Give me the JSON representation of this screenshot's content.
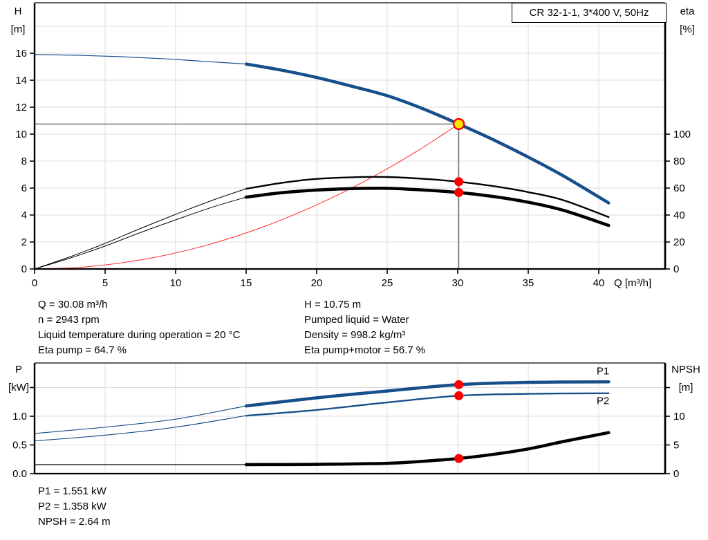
{
  "colors": {
    "curve_blue": "#174f8a",
    "system_red": "#ff2a2a",
    "marker_red": "#ff0000",
    "duty_yellow": "#ffe600",
    "grid_gray": "#dcdcdc",
    "reference_gray": "#595959",
    "axis_black": "#000000"
  },
  "top_chart": {
    "y_left_title": [
      "H",
      "[m]"
    ],
    "y_right_title": [
      "eta",
      "[%]"
    ]
  },
  "bottom_chart": {
    "y_left_title": [
      "P",
      "[kW]"
    ],
    "y_right_title": [
      "NPSH",
      "[m]"
    ]
  },
  "info_panel": {
    "left_lines": [
      "Q = 30.08 m³/h",
      "n = 2943 rpm",
      "Liquid temperature during operation = 20 °C",
      "Eta pump = 64.7 %"
    ],
    "right_lines": [
      "H = 10.75 m",
      "Pumped liquid = Water",
      "Density = 998.2 kg/m³",
      "Eta pump+motor = 56.7 %"
    ]
  },
  "result_panel": {
    "lines": [
      "P1 = 1.551 kW",
      "P2 = 1.358 kW",
      "NPSH = 2.64 m"
    ]
  },
  "chart_data": [
    {
      "type": "line",
      "title": "CR 32-1-1, 3*400 V, 50Hz",
      "xlabel": "Q [m³/h]",
      "ylabel_left": "H [m]",
      "ylabel_right": "eta [%]",
      "xlim": [
        0,
        44.7
      ],
      "ylim_left": [
        0,
        19.5
      ],
      "ylim_right": [
        0,
        195
      ],
      "grid": true,
      "legend_position": "none",
      "grid_x": [
        5,
        10,
        15,
        20,
        25,
        30,
        35,
        40
      ],
      "grid_y": {
        "axis": "H",
        "values": [
          2,
          4,
          6,
          8,
          10,
          12,
          14,
          16,
          18
        ]
      },
      "ticks_x": [
        {
          "v": 0,
          "label": "0"
        },
        {
          "v": 5,
          "label": "5"
        },
        {
          "v": 10,
          "label": "10"
        },
        {
          "v": 15,
          "label": "15"
        },
        {
          "v": 20,
          "label": "20"
        },
        {
          "v": 25,
          "label": "25"
        },
        {
          "v": 30,
          "label": "30"
        },
        {
          "v": 35,
          "label": "35"
        },
        {
          "v": 40,
          "label": "40"
        }
      ],
      "ticks_left": [
        {
          "v": 0,
          "label": "0"
        },
        {
          "v": 2,
          "label": "2"
        },
        {
          "v": 4,
          "label": "4"
        },
        {
          "v": 6,
          "label": "6"
        },
        {
          "v": 8,
          "label": "8"
        },
        {
          "v": 10,
          "label": "10"
        },
        {
          "v": 12,
          "label": "12"
        },
        {
          "v": 14,
          "label": "14"
        },
        {
          "v": 16,
          "label": "16"
        }
      ],
      "ticks_right": [
        {
          "v": 0,
          "label": "0"
        },
        {
          "v": 20,
          "label": "20"
        },
        {
          "v": 40,
          "label": "40"
        },
        {
          "v": 60,
          "label": "60"
        },
        {
          "v": 80,
          "label": "80"
        },
        {
          "v": 100,
          "label": "100"
        }
      ],
      "series": [
        {
          "name": "system-curve",
          "axis": "H",
          "color": "#ff2a2a",
          "width": 1,
          "x": [
            0,
            3,
            6,
            9,
            12,
            15,
            18,
            21,
            24,
            27,
            30.08
          ],
          "y": [
            0,
            0.11,
            0.43,
            0.96,
            1.71,
            2.67,
            3.85,
            5.24,
            6.84,
            8.66,
            10.75
          ]
        },
        {
          "name": "eta-pump-low-flow",
          "axis": "eta",
          "color": "#000000",
          "width": 1,
          "x": [
            0,
            2.5,
            5,
            7.5,
            10,
            12.5,
            15
          ],
          "y": [
            0,
            9,
            19,
            30,
            40.5,
            50.5,
            59.5
          ]
        },
        {
          "name": "eta-pump-curve",
          "axis": "eta",
          "color": "#000000",
          "width": 2.4,
          "x": [
            15,
            17.5,
            20,
            22.5,
            25,
            27.5,
            30.08,
            32.5,
            35,
            37.5,
            40.7
          ],
          "y": [
            59.5,
            63.8,
            66.8,
            68,
            68.2,
            66.9,
            64.7,
            61.5,
            57,
            51,
            38.5
          ]
        },
        {
          "name": "eta-pump-motor-low-flow",
          "axis": "eta",
          "color": "#000000",
          "width": 1,
          "x": [
            0,
            2.5,
            5,
            7.5,
            10,
            12.5,
            15
          ],
          "y": [
            0,
            8,
            17,
            27,
            36.4,
            45.5,
            53.3
          ]
        },
        {
          "name": "eta-pump-motor-curve",
          "axis": "eta",
          "color": "#000000",
          "width": 4.5,
          "x": [
            15,
            17.5,
            20,
            22.5,
            25,
            27.5,
            30.08,
            32.5,
            35,
            37.5,
            40.7
          ],
          "y": [
            53.3,
            56.5,
            58.5,
            59.6,
            59.8,
            58.6,
            56.7,
            53.8,
            49.5,
            43.5,
            32.3
          ]
        },
        {
          "name": "head-curve-low-flow",
          "axis": "H",
          "color": "#174f8a",
          "width": 1.2,
          "x": [
            0,
            3,
            6,
            9,
            12,
            15
          ],
          "y": [
            15.9,
            15.85,
            15.75,
            15.6,
            15.4,
            15.2
          ]
        },
        {
          "name": "head-curve",
          "axis": "H",
          "color": "#174f8a",
          "width": 4.5,
          "x": [
            15,
            17.5,
            20,
            22.5,
            25,
            27.5,
            30.08,
            32.5,
            35,
            37.5,
            40.7
          ],
          "y": [
            15.2,
            14.75,
            14.2,
            13.55,
            12.85,
            11.9,
            10.75,
            9.6,
            8.3,
            6.9,
            4.9
          ]
        }
      ],
      "reference_lines": [
        {
          "name": "duty-flow-line",
          "type": "v",
          "x": 30.08,
          "axis": "H",
          "from": 0,
          "to": 10.75,
          "color": "#595959",
          "width": 1.2
        },
        {
          "name": "duty-head-line",
          "type": "h",
          "axis": "H",
          "y": 10.75,
          "from": 0,
          "to": 30.08,
          "color": "#595959",
          "width": 1.2
        }
      ],
      "markers": [
        {
          "name": "eta-pump-marker",
          "x": 30.08,
          "axis": "eta",
          "y": 64.7,
          "r": 6.5,
          "fill": "#ff0000",
          "stroke": "none",
          "sw": 0
        },
        {
          "name": "eta-pump-motor-marker",
          "x": 30.08,
          "axis": "eta",
          "y": 56.7,
          "r": 6.5,
          "fill": "#ff0000",
          "stroke": "none",
          "sw": 0
        },
        {
          "name": "duty-point-marker",
          "x": 30.08,
          "axis": "H",
          "y": 10.75,
          "r": 7.5,
          "fill": "#ffe600",
          "stroke": "#ff0000",
          "sw": 2.4
        }
      ],
      "annotations": []
    },
    {
      "type": "line",
      "title": "",
      "xlabel": "",
      "ylabel_left": "P [kW]",
      "ylabel_right": "NPSH [m]",
      "xlim": [
        0,
        44.7
      ],
      "ylim_left": [
        0,
        1.93
      ],
      "ylim_right": [
        0,
        19.3
      ],
      "grid": true,
      "legend_position": "inline-right",
      "grid_x": [
        5,
        10,
        15,
        20,
        25,
        30,
        35,
        40
      ],
      "grid_y": {
        "axis": "P",
        "values": [
          0.5,
          1.0,
          1.5
        ]
      },
      "ticks_x": [],
      "ticks_left": [
        {
          "v": 0,
          "label": "0.0"
        },
        {
          "v": 0.5,
          "label": "0.5"
        },
        {
          "v": 1.0,
          "label": "1.0"
        },
        {
          "v": 1.5,
          "label": ""
        }
      ],
      "ticks_right": [
        {
          "v": 0,
          "label": "0"
        },
        {
          "v": 5,
          "label": "5"
        },
        {
          "v": 10,
          "label": "10"
        },
        {
          "v": 15,
          "label": ""
        }
      ],
      "series": [
        {
          "name": "npsh-low-flow",
          "axis": "NPSH",
          "color": "#000000",
          "width": 1.2,
          "x": [
            0,
            15
          ],
          "y": [
            1.57,
            1.57
          ]
        },
        {
          "name": "npsh-curve",
          "axis": "NPSH",
          "color": "#000000",
          "width": 4.5,
          "x": [
            15,
            20,
            25,
            27.5,
            30.08,
            32.5,
            35,
            37.5,
            40.7
          ],
          "y": [
            1.57,
            1.62,
            1.8,
            2.15,
            2.64,
            3.35,
            4.3,
            5.6,
            7.15
          ]
        },
        {
          "name": "p1-low-flow",
          "axis": "P",
          "color": "#174f8a",
          "width": 1.2,
          "x": [
            0,
            5,
            10,
            15
          ],
          "y": [
            0.7,
            0.81,
            0.95,
            1.18
          ]
        },
        {
          "name": "p1-curve",
          "axis": "P",
          "color": "#174f8a",
          "width": 4.5,
          "x": [
            15,
            20,
            25,
            30.08,
            35,
            40.7
          ],
          "y": [
            1.18,
            1.32,
            1.44,
            1.551,
            1.59,
            1.6
          ]
        },
        {
          "name": "p2-low-flow",
          "axis": "P",
          "color": "#174f8a",
          "width": 1.2,
          "x": [
            0,
            5,
            10,
            15
          ],
          "y": [
            0.57,
            0.67,
            0.81,
            1.01
          ]
        },
        {
          "name": "p2-curve",
          "axis": "P",
          "color": "#174f8a",
          "width": 2.4,
          "x": [
            15,
            20,
            25,
            30.08,
            35,
            40.7
          ],
          "y": [
            1.01,
            1.11,
            1.24,
            1.358,
            1.39,
            1.4
          ]
        }
      ],
      "reference_lines": [],
      "markers": [
        {
          "name": "p1-marker",
          "x": 30.08,
          "axis": "P",
          "y": 1.551,
          "r": 6.5,
          "fill": "#ff0000",
          "stroke": "none",
          "sw": 0
        },
        {
          "name": "p2-marker",
          "x": 30.08,
          "axis": "P",
          "y": 1.358,
          "r": 6.5,
          "fill": "#ff0000",
          "stroke": "none",
          "sw": 0
        },
        {
          "name": "npsh-marker",
          "x": 30.08,
          "axis": "NPSH",
          "y": 2.64,
          "r": 6.5,
          "fill": "#ff0000",
          "stroke": "none",
          "sw": 0
        }
      ],
      "annotations": [
        {
          "name": "p1-curve-label",
          "label": "P1",
          "x": 39.85,
          "axis": "P",
          "y": 1.73,
          "color": "#174f8a"
        },
        {
          "name": "p2-curve-label",
          "label": "P2",
          "x": 39.85,
          "axis": "P",
          "y": 1.21,
          "color": "#174f8a"
        }
      ]
    }
  ]
}
